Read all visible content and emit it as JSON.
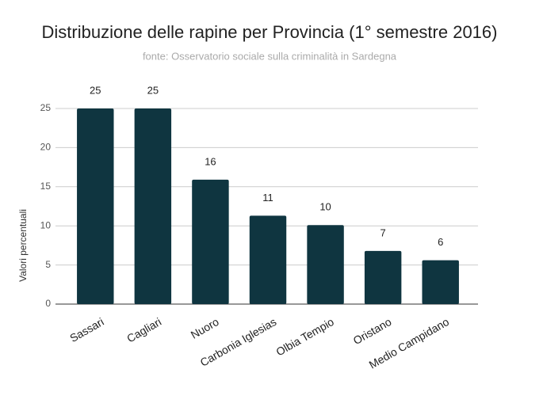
{
  "chart_data": {
    "type": "bar",
    "title": "Distribuzione delle rapine per Provincia (1° semestre 2016)",
    "subtitle": "fonte: Osservatorio sociale sulla criminalità in Sardegna",
    "y_label": "Valori percentuali",
    "categories": [
      "Sassari",
      "Cagliari",
      "Nuoro",
      "Carbonia Iglesias",
      "Olbia Tempio",
      "Oristano",
      "Medio Campidano"
    ],
    "values": [
      25,
      25,
      15.9,
      11.3,
      10.1,
      6.8,
      5.6
    ],
    "value_labels": [
      "25",
      "25",
      "16",
      "11",
      "10",
      "7",
      "6"
    ],
    "color": "#0f3540",
    "ylim": [
      0,
      25
    ],
    "yticks": [
      0,
      5,
      10,
      15,
      20,
      25
    ],
    "grid": true
  }
}
